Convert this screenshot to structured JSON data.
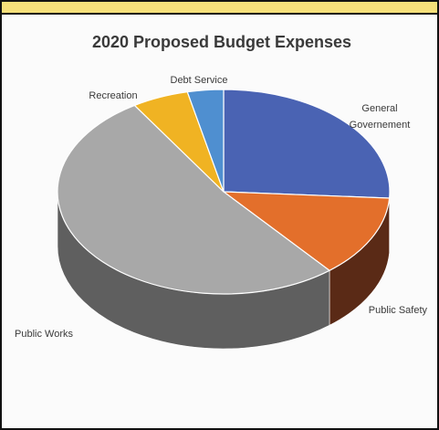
{
  "chart_data": {
    "type": "pie",
    "title": "2020 Proposed Budget Expenses",
    "slices": [
      {
        "label": "General Governement",
        "label_lines": [
          "General",
          "Governement"
        ],
        "value": 26,
        "color": "#4a63b3",
        "side": "#2c3c70"
      },
      {
        "label": "Public Safety",
        "label_lines": [
          "Public Safety"
        ],
        "value": 13,
        "color": "#e36f2b",
        "side": "#5a2a16"
      },
      {
        "label": "Public Works",
        "label_lines": [
          "Public Works"
        ],
        "value": 52,
        "color": "#a8a8a8",
        "side": "#5f5f5f"
      },
      {
        "label": "Recreation",
        "label_lines": [
          "Recreation"
        ],
        "value": 5.5,
        "color": "#f0b323",
        "side": "#8a6410"
      },
      {
        "label": "Debt Service",
        "label_lines": [
          "Debt Service"
        ],
        "value": 3.5,
        "color": "#4f8fd0",
        "side": "#2d5680"
      }
    ],
    "start_angle_deg": -90,
    "legend": "none"
  }
}
